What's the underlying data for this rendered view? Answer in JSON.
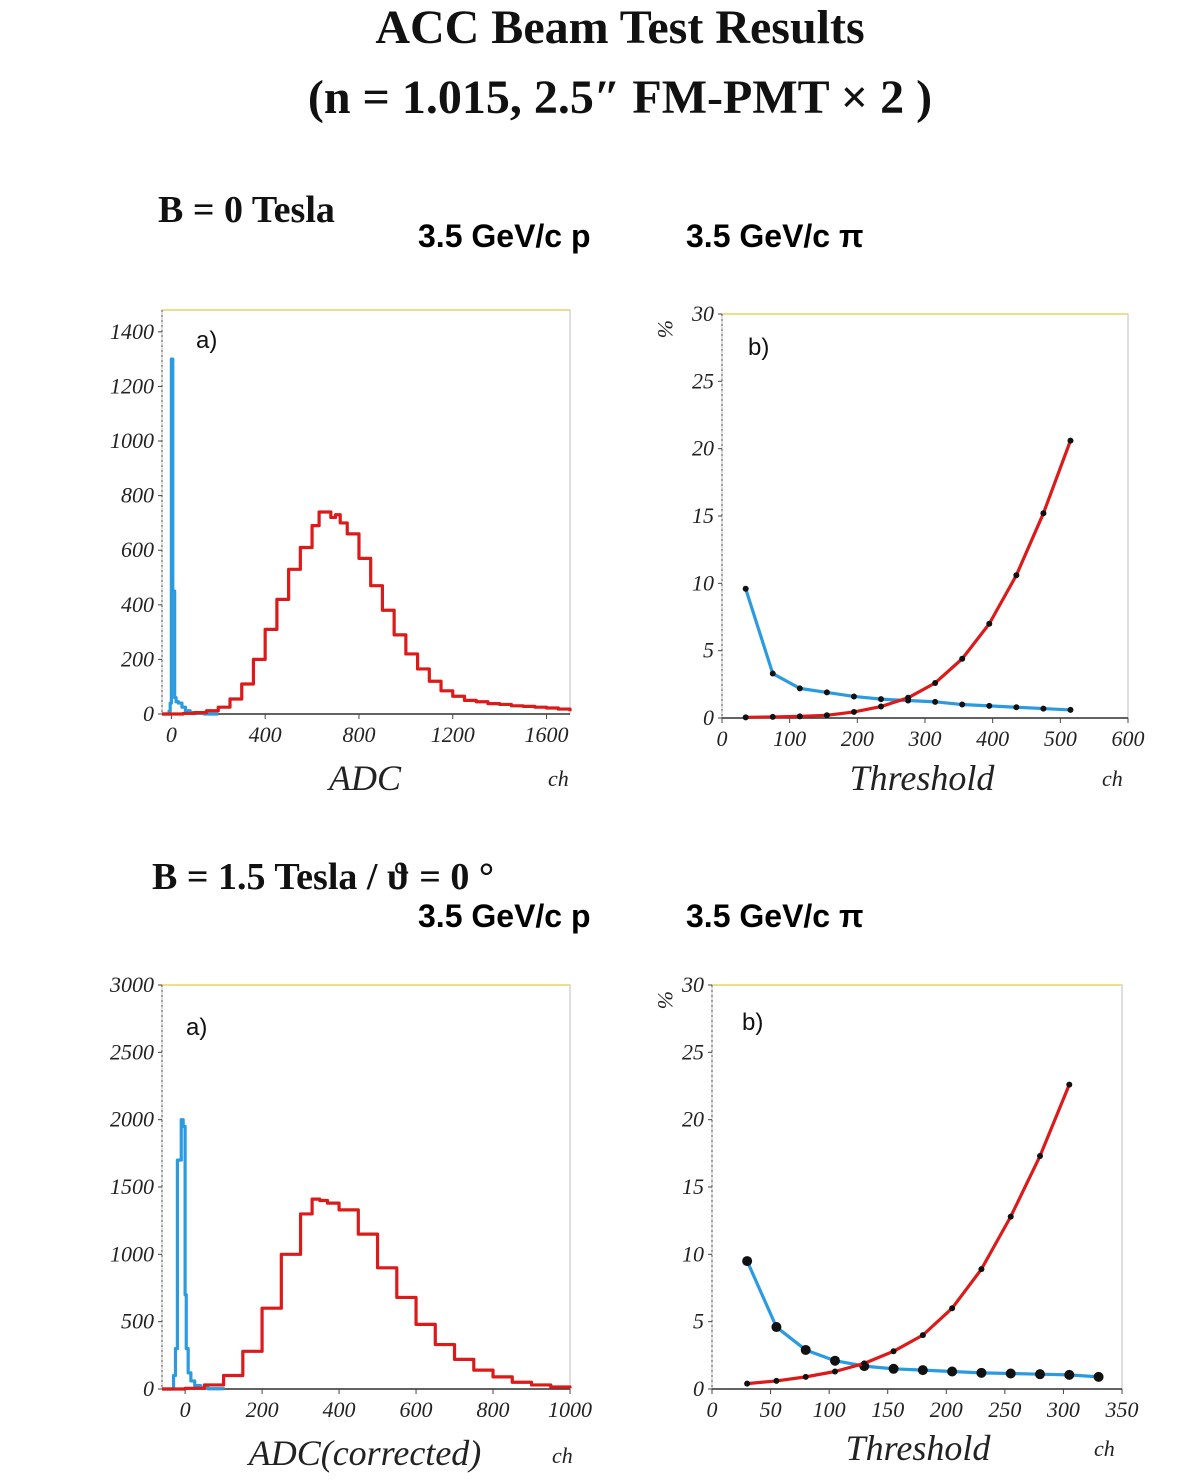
{
  "page": {
    "title_line1": "ACC Beam Test Results",
    "title_line2": "(n = 1.015, 2.5″ FM-PMT × 2 )"
  },
  "sections": [
    {
      "condition": "B = 0 Tesla",
      "legend_p": "3.5 GeV/c p",
      "legend_pi": "3.5 GeV/c π"
    },
    {
      "condition": "B = 1.5 Tesla / ϑ = 0 °",
      "legend_p": "3.5 GeV/c p",
      "legend_pi": "3.5 GeV/c π"
    }
  ],
  "colors": {
    "proton": "#2a9be0",
    "pion": "#dd1a1a",
    "dots": "#111111"
  },
  "chart_data": [
    {
      "type": "line",
      "panel_label": "a)",
      "xlabel": "ADC",
      "xunit": "ch",
      "ylabel": "",
      "xlim": [
        -40,
        1700
      ],
      "ylim": [
        0,
        1480
      ],
      "xticks": [
        0,
        400,
        800,
        1200,
        1600
      ],
      "yticks": [
        0,
        200,
        400,
        600,
        800,
        1000,
        1200,
        1400
      ],
      "series": [
        {
          "color_key": "proton",
          "x": [
            -40,
            -15,
            -10,
            -5,
            0,
            2,
            6,
            10,
            14,
            20,
            30,
            45,
            60,
            80,
            100,
            140,
            200
          ],
          "y": [
            0,
            0,
            10,
            40,
            1300,
            1300,
            450,
            450,
            60,
            45,
            40,
            25,
            12,
            5,
            2,
            0,
            0
          ]
        },
        {
          "color_key": "pion",
          "x": [
            -40,
            0,
            50,
            100,
            150,
            200,
            250,
            300,
            350,
            400,
            450,
            500,
            550,
            600,
            630,
            660,
            680,
            700,
            720,
            750,
            800,
            850,
            900,
            950,
            1000,
            1050,
            1100,
            1150,
            1200,
            1250,
            1300,
            1350,
            1400,
            1450,
            1500,
            1550,
            1600,
            1650,
            1700
          ],
          "y": [
            0,
            0,
            2,
            5,
            12,
            25,
            55,
            110,
            200,
            310,
            420,
            530,
            610,
            690,
            740,
            740,
            720,
            730,
            700,
            660,
            570,
            470,
            380,
            290,
            220,
            165,
            120,
            85,
            65,
            50,
            45,
            38,
            35,
            30,
            28,
            25,
            22,
            18,
            10
          ]
        }
      ]
    },
    {
      "type": "line",
      "panel_label": "b)",
      "xlabel": "Threshold",
      "xunit": "ch",
      "ylabel": "%",
      "xlim": [
        0,
        600
      ],
      "ylim": [
        0,
        30
      ],
      "xticks": [
        0,
        100,
        200,
        300,
        400,
        500,
        600
      ],
      "yticks": [
        0,
        5,
        10,
        15,
        20,
        25,
        30
      ],
      "series": [
        {
          "color_key": "proton",
          "x": [
            35,
            75,
            115,
            155,
            195,
            235,
            275,
            315,
            355,
            395,
            435,
            475,
            515
          ],
          "y": [
            9.6,
            3.3,
            2.2,
            1.9,
            1.6,
            1.4,
            1.3,
            1.2,
            1.0,
            0.9,
            0.8,
            0.7,
            0.6
          ]
        },
        {
          "color_key": "pion",
          "x": [
            35,
            75,
            115,
            155,
            195,
            235,
            275,
            315,
            355,
            395,
            435,
            475,
            515
          ],
          "y": [
            0.05,
            0.08,
            0.12,
            0.2,
            0.45,
            0.85,
            1.5,
            2.6,
            4.4,
            7.0,
            10.6,
            15.2,
            20.6
          ]
        }
      ]
    },
    {
      "type": "line",
      "panel_label": "a)",
      "xlabel": "ADC(corrected)",
      "xunit": "ch",
      "ylabel": "",
      "xlim": [
        -60,
        1000
      ],
      "ylim": [
        0,
        3000
      ],
      "xticks": [
        0,
        200,
        400,
        600,
        800,
        1000
      ],
      "yticks": [
        0,
        500,
        1000,
        1500,
        2000,
        2500,
        3000
      ],
      "series": [
        {
          "color_key": "proton",
          "x": [
            -60,
            -40,
            -30,
            -25,
            -20,
            -15,
            -10,
            -5,
            0,
            3,
            8,
            15,
            25,
            40,
            60,
            100
          ],
          "y": [
            0,
            0,
            100,
            300,
            1700,
            1700,
            2000,
            1950,
            700,
            300,
            120,
            60,
            25,
            8,
            2,
            0
          ]
        },
        {
          "color_key": "pion",
          "x": [
            -60,
            0,
            50,
            100,
            150,
            200,
            250,
            300,
            330,
            350,
            370,
            400,
            450,
            500,
            550,
            600,
            650,
            700,
            750,
            800,
            850,
            900,
            950,
            1000
          ],
          "y": [
            0,
            5,
            30,
            100,
            280,
            600,
            1000,
            1300,
            1410,
            1400,
            1380,
            1330,
            1150,
            900,
            680,
            480,
            330,
            220,
            140,
            90,
            50,
            30,
            15,
            5
          ]
        }
      ]
    },
    {
      "type": "line",
      "panel_label": "b)",
      "xlabel": "Threshold",
      "xunit": "ch",
      "ylabel": "%",
      "xlim": [
        0,
        350
      ],
      "ylim": [
        0,
        30
      ],
      "xticks": [
        0,
        50,
        100,
        150,
        200,
        250,
        300,
        350
      ],
      "yticks": [
        0,
        5,
        10,
        15,
        20,
        25,
        30
      ],
      "series": [
        {
          "color_key": "proton",
          "x": [
            30,
            55,
            80,
            105,
            130,
            155,
            180,
            205,
            230,
            255,
            280,
            305,
            330
          ],
          "y": [
            9.5,
            4.6,
            2.9,
            2.1,
            1.7,
            1.5,
            1.4,
            1.3,
            1.2,
            1.15,
            1.1,
            1.05,
            0.9
          ]
        },
        {
          "color_key": "pion",
          "x": [
            30,
            55,
            80,
            105,
            130,
            155,
            180,
            205,
            230,
            255,
            280,
            305
          ],
          "y": [
            0.4,
            0.6,
            0.9,
            1.3,
            1.9,
            2.8,
            4.0,
            6.0,
            8.9,
            12.8,
            17.3,
            22.6
          ]
        }
      ]
    }
  ]
}
